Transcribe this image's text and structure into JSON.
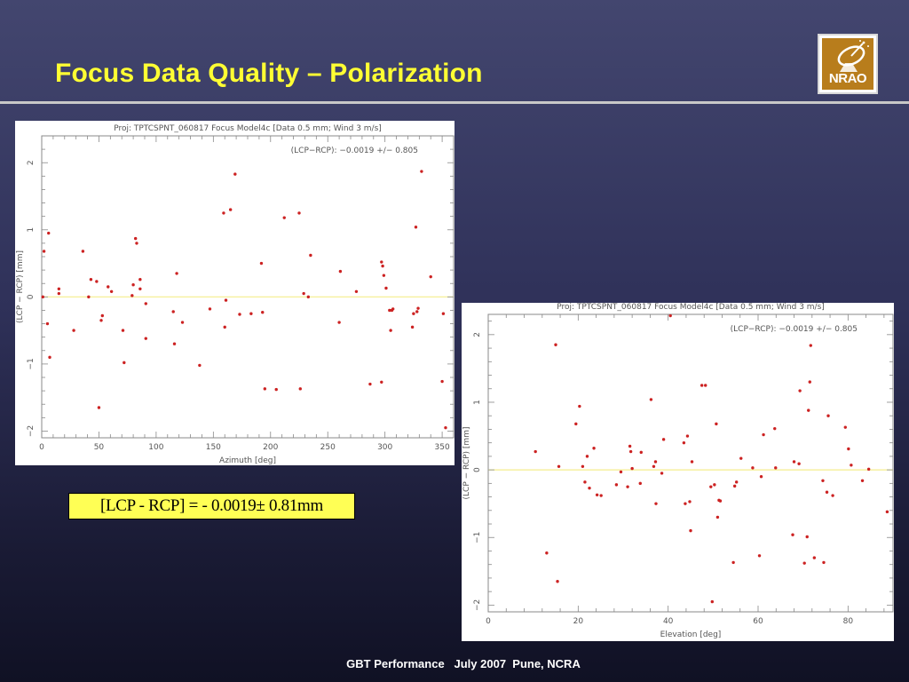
{
  "slide": {
    "title": "Focus Data Quality – Polarization",
    "formula": "[LCP - RCP] = - 0.0019± 0.81mm",
    "footer": "GBT Performance   July 2007  Pune, NCRA",
    "logo_text": "NRAO"
  },
  "colors": {
    "title": "#ffff33",
    "points": "#cc2222",
    "zero_line": "#f4ee8c",
    "axes": "#888888"
  },
  "chart_data": [
    {
      "type": "scatter",
      "title": "Proj: TPTCSPNT_060817   Focus   Model4c [Data 0.5 mm; Wind 3 m/s]",
      "annotation": "(LCP−RCP): −0.0019 +/− 0.805",
      "xlabel": "Azimuth [deg]",
      "ylabel": "(LCP − RCP) [mm]",
      "xlim": [
        0,
        360
      ],
      "ylim": [
        -2.1,
        2.4
      ],
      "xticks": [
        0,
        50,
        100,
        150,
        200,
        250,
        300,
        350
      ],
      "yticks": [
        -2,
        -1,
        0,
        1,
        2
      ],
      "reference_line_y": 0,
      "x": [
        1,
        2,
        5,
        6,
        7,
        15,
        15,
        28,
        36,
        41,
        43,
        48,
        50,
        52,
        53,
        58,
        61,
        71,
        72,
        79,
        80,
        82,
        83,
        86,
        86,
        91,
        91,
        115,
        116,
        118,
        123,
        138,
        147,
        159,
        160,
        161,
        165,
        169,
        173,
        183,
        192,
        193,
        195,
        205,
        212,
        225,
        226,
        229,
        233,
        235,
        260,
        261,
        275,
        287,
        297,
        297,
        298,
        299,
        301,
        304,
        305,
        306,
        307,
        324,
        325,
        327,
        328,
        329,
        332,
        340,
        350,
        351,
        353
      ],
      "y": [
        0,
        0.68,
        -0.4,
        0.95,
        -0.9,
        0.12,
        0.05,
        -0.5,
        0.68,
        0,
        0.26,
        0.23,
        -1.65,
        -0.35,
        -0.28,
        0.15,
        0.08,
        -0.5,
        -0.98,
        0.02,
        0.18,
        0.87,
        0.8,
        0.26,
        0.12,
        -0.1,
        -0.62,
        -0.22,
        -0.7,
        0.35,
        -0.38,
        -1.02,
        -0.18,
        1.25,
        -0.45,
        -0.05,
        1.3,
        1.83,
        -0.26,
        -0.25,
        0.5,
        -0.23,
        -1.37,
        -1.38,
        1.18,
        1.25,
        -1.37,
        0.05,
        0,
        0.62,
        -0.38,
        0.38,
        0.08,
        -1.3,
        -1.27,
        0.52,
        0.46,
        0.32,
        0.13,
        -0.2,
        -0.5,
        -0.2,
        -0.18,
        -0.45,
        -0.25,
        1.04,
        -0.22,
        -0.17,
        1.87,
        0.3,
        -1.26,
        -0.25,
        -1.95
      ]
    },
    {
      "type": "scatter",
      "title": "Proj: TPTCSPNT_060817   Focus   Model4c [Data 0.5 mm; Wind 3 m/s]",
      "annotation": "(LCP−RCP): −0.0019 +/− 0.805",
      "xlabel": "Elevation [deg]",
      "ylabel": "(LCP − RCP) [mm]",
      "xlim": [
        0,
        90
      ],
      "ylim": [
        -2.1,
        2.3
      ],
      "xticks": [
        0,
        20,
        40,
        60,
        80
      ],
      "yticks": [
        -2,
        -1,
        0,
        1,
        2
      ],
      "reference_line_y": 0,
      "x": [
        10.5,
        13,
        15,
        15.4,
        15.7,
        19.5,
        20.3,
        21,
        21.5,
        22,
        22.5,
        23.5,
        24.2,
        25.1,
        28.5,
        29.5,
        31,
        31.5,
        31.7,
        32,
        33.8,
        34,
        36.2,
        36.8,
        37.2,
        37.3,
        38.6,
        39,
        40.5,
        43.5,
        43.8,
        44.3,
        44.8,
        45,
        45.3,
        47.5,
        48.3,
        49.5,
        49.8,
        50.3,
        50.7,
        51,
        51.3,
        51.6,
        54.5,
        54.8,
        55.2,
        56.2,
        58.8,
        60.3,
        60.7,
        61.2,
        63.7,
        63.9,
        67.7,
        68,
        69.1,
        69.3,
        70.3,
        70.9,
        71.2,
        71.5,
        71.7,
        72.5,
        74.4,
        74.6,
        75.3,
        75.6,
        76.6,
        79.4,
        80.1,
        80.7,
        83.2,
        84.6,
        88.7
      ],
      "y": [
        0.27,
        -1.23,
        1.85,
        -1.65,
        0.05,
        0.68,
        0.94,
        0.05,
        -0.18,
        0.2,
        -0.27,
        0.32,
        -0.37,
        -0.38,
        -0.22,
        -0.03,
        -0.25,
        0.35,
        0.27,
        0.02,
        -0.2,
        0.26,
        1.04,
        0.05,
        0.12,
        -0.5,
        -0.05,
        0.45,
        2.28,
        0.4,
        -0.5,
        0.5,
        -0.47,
        -0.9,
        0.12,
        1.25,
        1.25,
        -0.25,
        -1.95,
        -0.22,
        0.68,
        -0.7,
        -0.45,
        -0.46,
        -1.37,
        -0.24,
        -0.18,
        0.17,
        0.03,
        -1.27,
        -0.1,
        0.52,
        0.61,
        0.03,
        -0.96,
        0.12,
        0.09,
        1.17,
        -1.38,
        -0.99,
        0.88,
        1.3,
        1.84,
        -1.3,
        -0.16,
        -1.37,
        -0.33,
        0.8,
        -0.38,
        0.63,
        0.31,
        0.07,
        -0.16,
        0.01,
        -0.62
      ]
    }
  ]
}
